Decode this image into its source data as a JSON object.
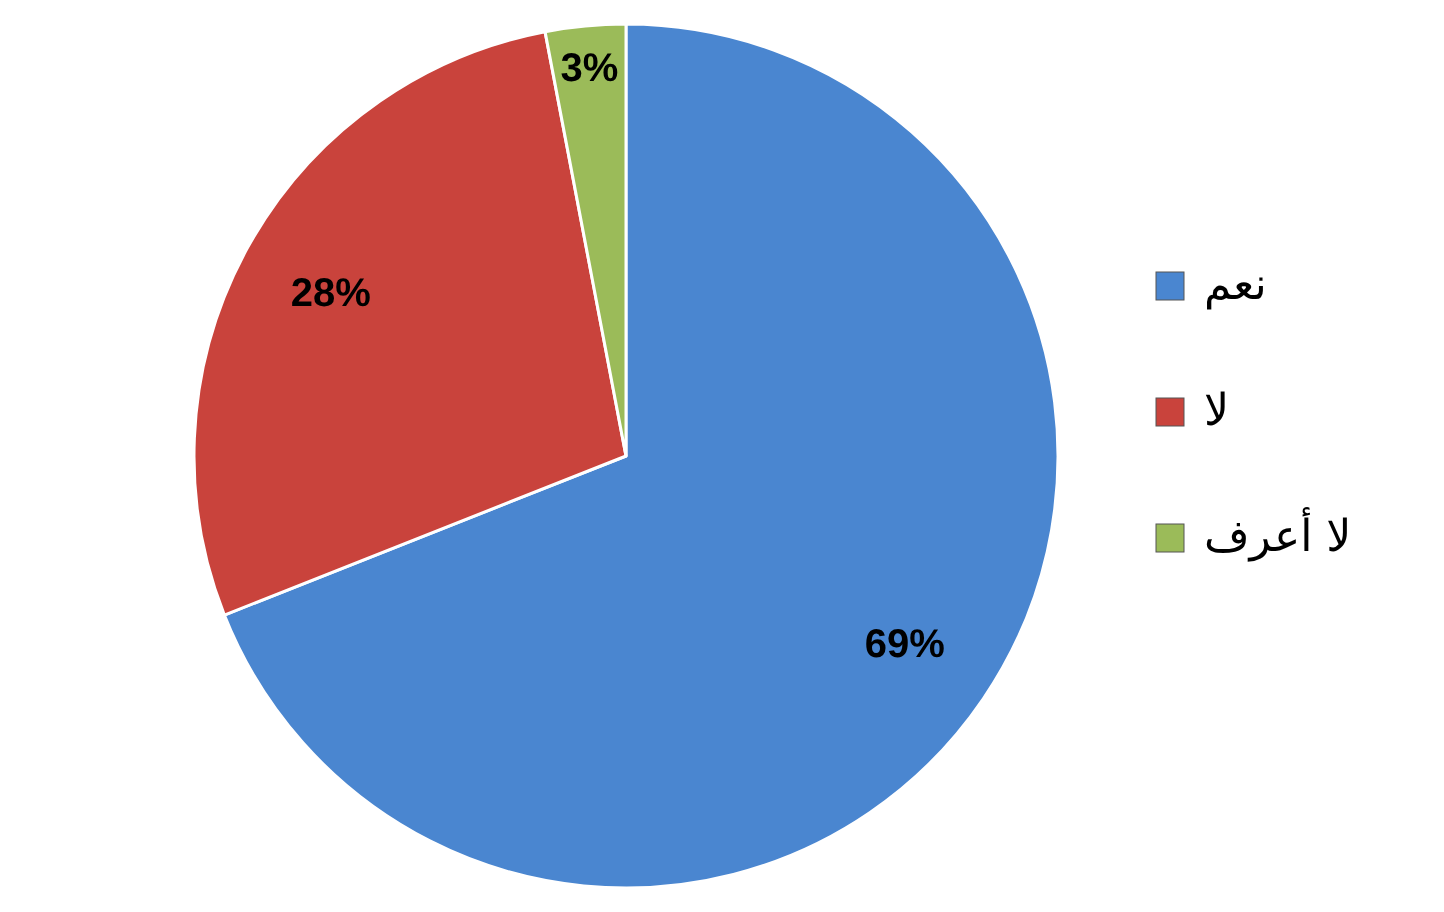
{
  "chart_data": {
    "type": "pie",
    "categories": [
      "نعم",
      "لا",
      "لا أعرف"
    ],
    "values": [
      69,
      28,
      3
    ],
    "colors": [
      "#4a86d0",
      "#c9433c",
      "#9bbb59"
    ],
    "value_labels": [
      "69%",
      "28%",
      "3%"
    ],
    "legend": "right"
  }
}
